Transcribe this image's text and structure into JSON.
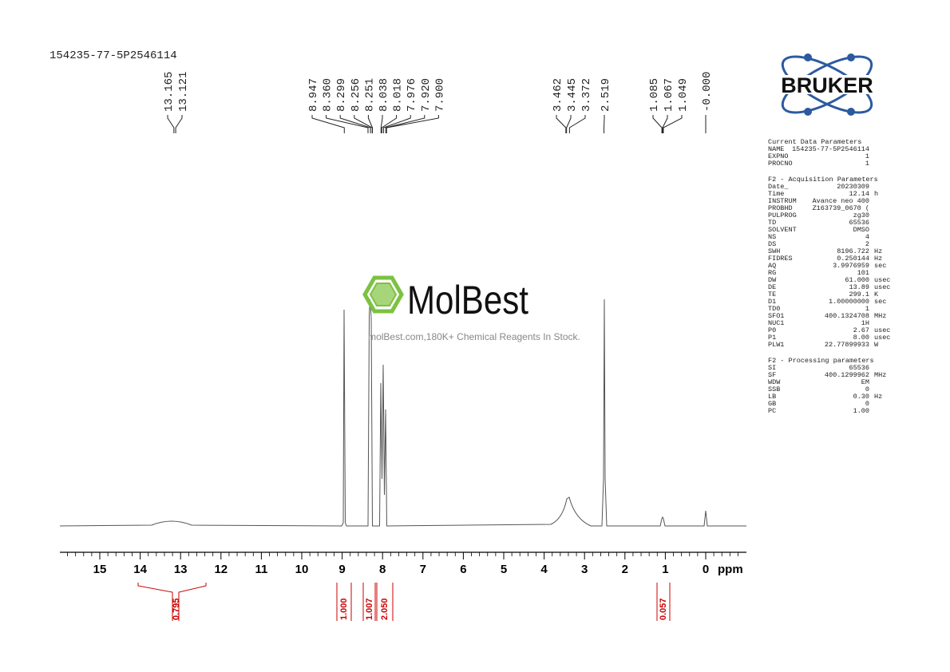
{
  "sample_name": "154235-77-5P2546114",
  "peak_groups": [
    [
      "13.165",
      "13.121"
    ],
    [
      "8.947",
      "8.360",
      "8.299",
      "8.256",
      "8.251",
      "8.038",
      "8.018",
      "7.976",
      "7.920",
      "7.900"
    ],
    [
      "3.462",
      "3.445",
      "3.372"
    ],
    [
      "2.519"
    ],
    [
      "1.085",
      "1.067",
      "1.049"
    ],
    [
      "-0.000"
    ]
  ],
  "axis": {
    "ticks": [
      15,
      14,
      13,
      12,
      11,
      10,
      9,
      8,
      7,
      6,
      5,
      4,
      3,
      2,
      1,
      0
    ],
    "unit": "ppm"
  },
  "integrals": [
    "0.795",
    "1.000",
    "1.007",
    "2.050",
    "0.057"
  ],
  "watermark": {
    "brand": "MolBest",
    "tagline": "molBest.com,180K+ Chemical Reagents In Stock."
  },
  "logo": "BRUKER",
  "parameters": [
    {
      "title": "Current Data Parameters",
      "rows": [
        [
          "NAME",
          "154235-77-5P2546114",
          ""
        ],
        [
          "EXPNO",
          "1",
          ""
        ],
        [
          "PROCNO",
          "1",
          ""
        ]
      ]
    },
    {
      "title": "F2 - Acquisition Parameters",
      "rows": [
        [
          "Date_",
          "20230309",
          ""
        ],
        [
          "Time",
          "12.14",
          "h"
        ],
        [
          "INSTRUM",
          "Avance neo 400",
          ""
        ],
        [
          "PROBHD",
          "Z163739_0670 (",
          ""
        ],
        [
          "PULPROG",
          "zg30",
          ""
        ],
        [
          "TD",
          "65536",
          ""
        ],
        [
          "SOLVENT",
          "DMSO",
          ""
        ],
        [
          "NS",
          "4",
          ""
        ],
        [
          "DS",
          "2",
          ""
        ],
        [
          "SWH",
          "8196.722",
          "Hz"
        ],
        [
          "FIDRES",
          "0.250144",
          "Hz"
        ],
        [
          "AQ",
          "3.9976959",
          "sec"
        ],
        [
          "RG",
          "101",
          ""
        ],
        [
          "DW",
          "61.000",
          "usec"
        ],
        [
          "DE",
          "13.89",
          "usec"
        ],
        [
          "TE",
          "299.1",
          "K"
        ],
        [
          "D1",
          "1.00000000",
          "sec"
        ],
        [
          "TD0",
          "1",
          ""
        ],
        [
          "SFO1",
          "400.1324708",
          "MHz"
        ],
        [
          "NUC1",
          "1H",
          ""
        ],
        [
          "P0",
          "2.67",
          "usec"
        ],
        [
          "P1",
          "8.00",
          "usec"
        ],
        [
          "PLW1",
          "22.77899933",
          "W"
        ]
      ]
    },
    {
      "title": "F2 - Processing parameters",
      "rows": [
        [
          "SI",
          "65536",
          ""
        ],
        [
          "SF",
          "400.1299962",
          "MHz"
        ],
        [
          "WDW",
          "EM",
          ""
        ],
        [
          "SSB",
          "0",
          ""
        ],
        [
          "LB",
          "0.30",
          "Hz"
        ],
        [
          "GB",
          "0",
          ""
        ],
        [
          "PC",
          "1.00",
          ""
        ]
      ]
    }
  ]
}
